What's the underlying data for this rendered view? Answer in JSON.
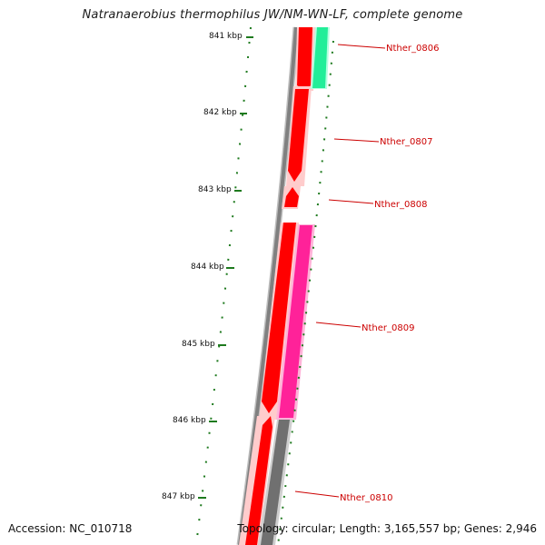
{
  "title": "Natranaerobius thermophilus JW/NM-WN-LF, complete genome",
  "footer": {
    "accession": "Accession: NC_010718",
    "topology": "Topology: circular; Length: 3,165,557 bp; Genes: 2,946"
  },
  "ticks": [
    "841 kbp",
    "842 kbp",
    "843 kbp",
    "844 kbp",
    "845 kbp",
    "846 kbp",
    "847 kbp"
  ],
  "genes": [
    "Nther_0806",
    "Nther_0807",
    "Nther_0808",
    "Nther_0809",
    "Nther_0810"
  ],
  "colors": {
    "label": "#cc0000",
    "tick": "#1e7a1e",
    "backbone": "#808080",
    "cds": "#ff0000",
    "gene_cyan": "#22ee99",
    "gene_magenta": "#ff2299",
    "gene_grey": "#707070"
  }
}
